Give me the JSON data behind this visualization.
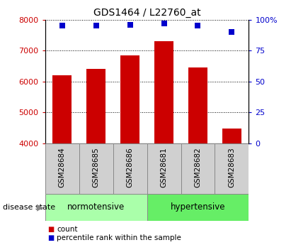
{
  "title": "GDS1464 / L22760_at",
  "samples": [
    "GSM28684",
    "GSM28685",
    "GSM28686",
    "GSM28681",
    "GSM28682",
    "GSM28683"
  ],
  "bar_values": [
    6200,
    6400,
    6850,
    7300,
    6450,
    4480
  ],
  "percentile_values": [
    95,
    95,
    96,
    97,
    95,
    90
  ],
  "bar_color": "#cc0000",
  "dot_color": "#0000cc",
  "ylim_left": [
    4000,
    8000
  ],
  "yticks_left": [
    4000,
    5000,
    6000,
    7000,
    8000
  ],
  "ylim_right": [
    0,
    100
  ],
  "yticks_right": [
    0,
    25,
    50,
    75,
    100
  ],
  "yticklabels_right": [
    "0",
    "25",
    "50",
    "75",
    "100%"
  ],
  "groups": [
    {
      "label": "normotensive",
      "indices": [
        0,
        1,
        2
      ],
      "color": "#aaffaa"
    },
    {
      "label": "hypertensive",
      "indices": [
        3,
        4,
        5
      ],
      "color": "#66ee66"
    }
  ],
  "disease_state_label": "disease state",
  "legend_items": [
    {
      "label": "count",
      "color": "#cc0000"
    },
    {
      "label": "percentile rank within the sample",
      "color": "#0000cc"
    }
  ],
  "tick_box_color": "#d0d0d0",
  "bar_width": 0.55,
  "grid_color": "#000000"
}
